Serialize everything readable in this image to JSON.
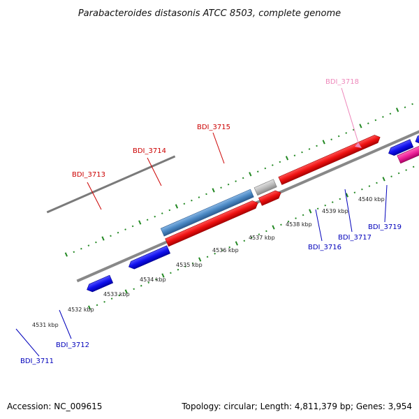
{
  "title": "Parabacteroides distasonis ATCC 8503, complete genome",
  "footer": {
    "accession": "Accession: NC_009615",
    "topology": "Topology: circular; Length: 4,811,379 bp; Genes: 3,954"
  },
  "colors": {
    "forward_label": "#cc0000",
    "reverse_label": "#0000bb",
    "highlight_label": "#ee88bb",
    "backbone": "#888888",
    "tick": "#228822",
    "red_gene": "#ee1111",
    "blue_gene": "#1111ee",
    "steel_gene": "#4a88c4",
    "grey_gene": "#bbbbbb",
    "pink_gene": "#ee2299"
  },
  "scale_labels": [
    "4531 kbp",
    "4532 kbp",
    "4533 kbp",
    "4534 kbp",
    "4535 kbp",
    "4536 kbp",
    "4537 kbp",
    "4538 kbp",
    "4539 kbp",
    "4540 kbp"
  ],
  "genes": {
    "forward": [
      {
        "id": "BDI_3713",
        "color": "red_gene"
      },
      {
        "id": "BDI_3714",
        "color": "red_gene"
      },
      {
        "id": "BDI_3715",
        "color": "red_gene"
      }
    ],
    "reverse": [
      {
        "id": "BDI_3711",
        "color": "blue_gene"
      },
      {
        "id": "BDI_3712",
        "color": "blue_gene"
      },
      {
        "id": "BDI_3716",
        "color": "pink_gene"
      },
      {
        "id": "BDI_3717",
        "color": "steel_gene"
      },
      {
        "id": "BDI_3719",
        "color": "blue_gene"
      }
    ],
    "highlight": {
      "id": "BDI_3718"
    }
  }
}
